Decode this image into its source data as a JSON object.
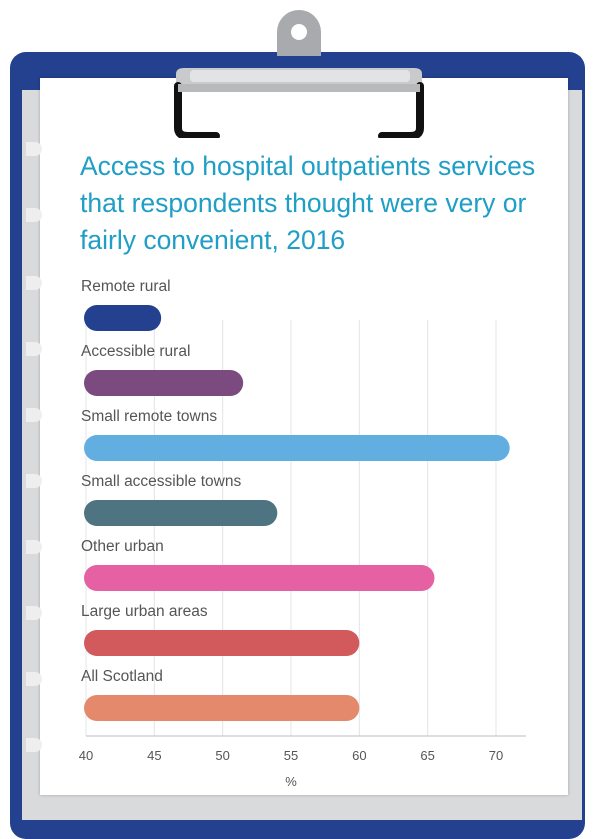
{
  "chart_data": {
    "type": "bar",
    "orientation": "horizontal",
    "title": "Access to hospital outpatients services that respondents thought were very or fairly convenient, 2016",
    "xlabel": "%",
    "xlim": [
      40,
      72
    ],
    "ticks": [
      "40",
      "45",
      "50",
      "55",
      "60",
      "65",
      "70"
    ],
    "grid": true,
    "categories": [
      "Remote rural",
      "Accessible rural",
      "Small remote towns",
      "Small accessible towns",
      "Other urban",
      "Large urban areas",
      "All Scotland"
    ],
    "values": [
      45.5,
      51.5,
      71,
      54,
      65.5,
      60,
      60
    ],
    "colors": [
      "#23418f",
      "#7b4a7f",
      "#62aee0",
      "#4d7480",
      "#e561a3",
      "#d2595c",
      "#e4896c"
    ]
  }
}
